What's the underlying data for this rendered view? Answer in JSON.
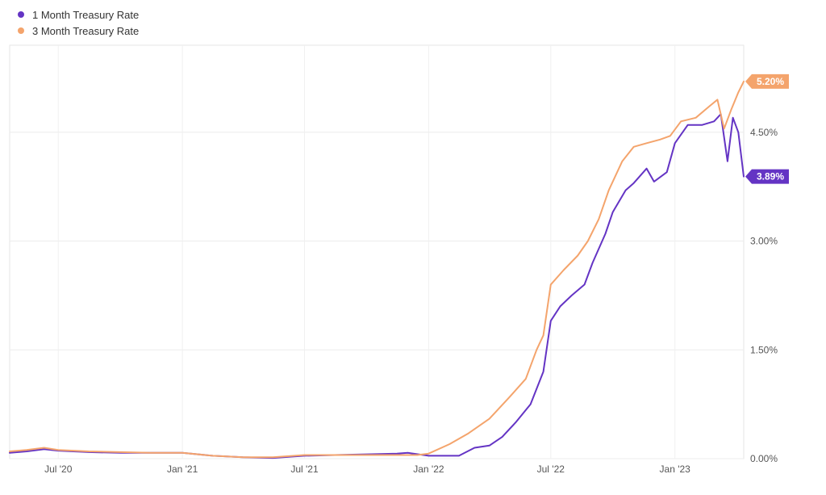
{
  "chart_data": {
    "type": "line",
    "title": "",
    "xlabel": "",
    "ylabel": "",
    "x_range": [
      "2020-04-20",
      "2023-04-13"
    ],
    "ylim": [
      0,
      5.7
    ],
    "y_ticks": [
      "0.00%",
      "1.50%",
      "3.00%",
      "4.50%"
    ],
    "y_tick_values": [
      0,
      1.5,
      3.0,
      4.5
    ],
    "x_ticks": [
      {
        "date": "2020-07-01",
        "label": "Jul '20"
      },
      {
        "date": "2021-01-01",
        "label": "Jan '21"
      },
      {
        "date": "2021-07-01",
        "label": "Jul '21"
      },
      {
        "date": "2022-01-01",
        "label": "Jan '22"
      },
      {
        "date": "2022-07-01",
        "label": "Jul '22"
      },
      {
        "date": "2023-01-01",
        "label": "Jan '23"
      }
    ],
    "grid": true,
    "legend_position": "top-left",
    "series": [
      {
        "name": "1 Month Treasury Rate",
        "color": "#6434c4",
        "end_label": "3.89%",
        "points": [
          [
            "2020-04-20",
            0.08
          ],
          [
            "2020-05-15",
            0.1
          ],
          [
            "2020-06-10",
            0.13
          ],
          [
            "2020-07-01",
            0.11
          ],
          [
            "2020-08-15",
            0.09
          ],
          [
            "2020-10-01",
            0.08
          ],
          [
            "2020-11-15",
            0.08
          ],
          [
            "2021-01-01",
            0.08
          ],
          [
            "2021-02-15",
            0.04
          ],
          [
            "2021-04-01",
            0.02
          ],
          [
            "2021-05-15",
            0.01
          ],
          [
            "2021-07-01",
            0.04
          ],
          [
            "2021-08-15",
            0.05
          ],
          [
            "2021-10-01",
            0.06
          ],
          [
            "2021-11-15",
            0.07
          ],
          [
            "2021-12-01",
            0.08
          ],
          [
            "2022-01-01",
            0.04
          ],
          [
            "2022-02-15",
            0.04
          ],
          [
            "2022-03-10",
            0.15
          ],
          [
            "2022-04-01",
            0.18
          ],
          [
            "2022-04-20",
            0.3
          ],
          [
            "2022-05-10",
            0.5
          ],
          [
            "2022-06-01",
            0.75
          ],
          [
            "2022-06-20",
            1.2
          ],
          [
            "2022-07-01",
            1.9
          ],
          [
            "2022-07-15",
            2.1
          ],
          [
            "2022-08-01",
            2.25
          ],
          [
            "2022-08-20",
            2.4
          ],
          [
            "2022-09-01",
            2.7
          ],
          [
            "2022-09-20",
            3.1
          ],
          [
            "2022-10-01",
            3.4
          ],
          [
            "2022-10-20",
            3.7
          ],
          [
            "2022-11-01",
            3.8
          ],
          [
            "2022-11-20",
            4.0
          ],
          [
            "2022-12-01",
            3.82
          ],
          [
            "2022-12-20",
            3.95
          ],
          [
            "2023-01-01",
            4.35
          ],
          [
            "2023-01-20",
            4.6
          ],
          [
            "2023-02-10",
            4.6
          ],
          [
            "2023-02-28",
            4.65
          ],
          [
            "2023-03-10",
            4.75
          ],
          [
            "2023-03-20",
            4.1
          ],
          [
            "2023-03-28",
            4.7
          ],
          [
            "2023-04-05",
            4.5
          ],
          [
            "2023-04-13",
            3.89
          ]
        ]
      },
      {
        "name": "3 Month Treasury Rate",
        "color": "#f4a46c",
        "end_label": "5.20%",
        "points": [
          [
            "2020-04-20",
            0.1
          ],
          [
            "2020-05-15",
            0.12
          ],
          [
            "2020-06-10",
            0.15
          ],
          [
            "2020-07-01",
            0.12
          ],
          [
            "2020-08-15",
            0.1
          ],
          [
            "2020-10-01",
            0.09
          ],
          [
            "2020-11-15",
            0.08
          ],
          [
            "2021-01-01",
            0.08
          ],
          [
            "2021-02-15",
            0.04
          ],
          [
            "2021-04-01",
            0.02
          ],
          [
            "2021-05-15",
            0.02
          ],
          [
            "2021-07-01",
            0.05
          ],
          [
            "2021-08-15",
            0.05
          ],
          [
            "2021-10-01",
            0.05
          ],
          [
            "2021-11-15",
            0.05
          ],
          [
            "2021-12-15",
            0.05
          ],
          [
            "2022-01-01",
            0.07
          ],
          [
            "2022-02-01",
            0.2
          ],
          [
            "2022-03-01",
            0.35
          ],
          [
            "2022-04-01",
            0.55
          ],
          [
            "2022-05-01",
            0.85
          ],
          [
            "2022-05-25",
            1.1
          ],
          [
            "2022-06-10",
            1.5
          ],
          [
            "2022-06-20",
            1.7
          ],
          [
            "2022-07-01",
            2.4
          ],
          [
            "2022-07-20",
            2.6
          ],
          [
            "2022-08-10",
            2.8
          ],
          [
            "2022-08-25",
            3.0
          ],
          [
            "2022-09-10",
            3.3
          ],
          [
            "2022-09-25",
            3.7
          ],
          [
            "2022-10-15",
            4.1
          ],
          [
            "2022-11-01",
            4.3
          ],
          [
            "2022-11-20",
            4.35
          ],
          [
            "2022-12-10",
            4.4
          ],
          [
            "2022-12-25",
            4.45
          ],
          [
            "2023-01-10",
            4.65
          ],
          [
            "2023-02-01",
            4.7
          ],
          [
            "2023-02-20",
            4.85
          ],
          [
            "2023-03-05",
            4.95
          ],
          [
            "2023-03-15",
            4.55
          ],
          [
            "2023-03-25",
            4.8
          ],
          [
            "2023-04-05",
            5.05
          ],
          [
            "2023-04-13",
            5.2
          ]
        ]
      }
    ]
  }
}
